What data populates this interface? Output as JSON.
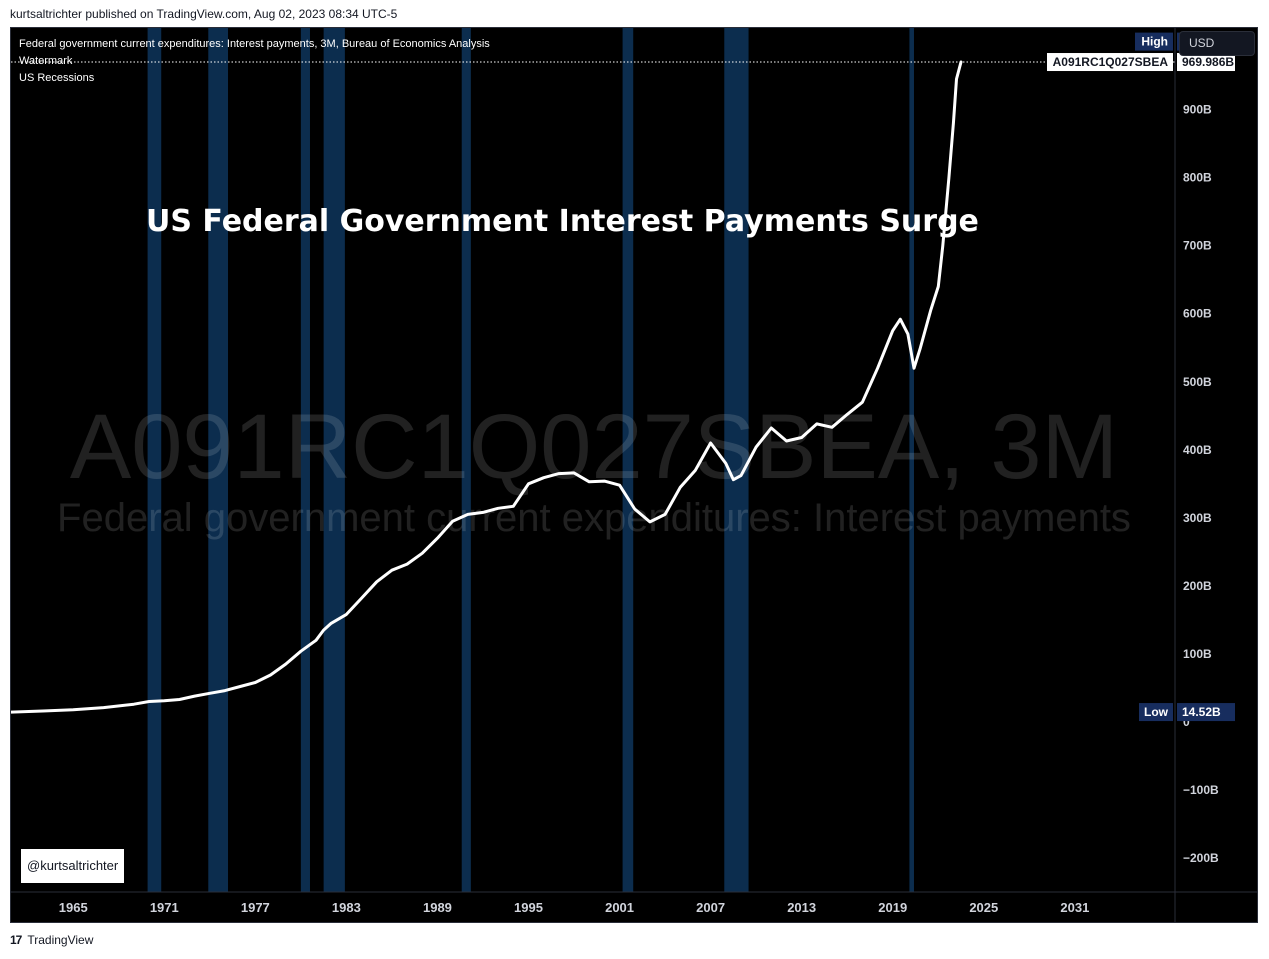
{
  "header": {
    "publish_line": "kurtsaltrichter published on TradingView.com, Aug 02, 2023 08:34 UTC-5"
  },
  "legend": {
    "series_title": "Federal government current expenditures: Interest payments, 3M, Bureau of Economics Analysis",
    "indicator_watermark": "Watermark",
    "indicator_recessions": "US Recessions"
  },
  "toolbar": {
    "currency_label": "USD"
  },
  "watermark": {
    "large": "A091RC1Q027SBEA, 3M",
    "sub": "Federal government current expenditures: Interest payments"
  },
  "credit": "@kurtsaltrichter",
  "footer": {
    "brand": "TradingView",
    "logo_text": "17"
  },
  "colors": {
    "background": "#000000",
    "line": "#ffffff",
    "recession": "#0c2d4e",
    "label_bg": "#172d5e"
  },
  "chart_data": {
    "type": "line",
    "title": "US Federal Government Interest Payments Surge",
    "symbol": "A091RC1Q027SBEA",
    "high_label": "High",
    "high_value": "969.986B",
    "last_value": "969.986B",
    "low_label": "Low",
    "low_value": "14.52B",
    "y_unit": "B",
    "ylim": [
      -250,
      1020
    ],
    "xlim": [
      1960.9,
      2037.6
    ],
    "y_ticks": [
      {
        "value": 900,
        "label": "900B"
      },
      {
        "value": 800,
        "label": "800B"
      },
      {
        "value": 700,
        "label": "700B"
      },
      {
        "value": 600,
        "label": "600B"
      },
      {
        "value": 500,
        "label": "500B"
      },
      {
        "value": 400,
        "label": "400B"
      },
      {
        "value": 300,
        "label": "300B"
      },
      {
        "value": 200,
        "label": "200B"
      },
      {
        "value": 100,
        "label": "100B"
      },
      {
        "value": 0,
        "label": "0"
      },
      {
        "value": -100,
        "label": "−100B"
      },
      {
        "value": -200,
        "label": "−200B"
      }
    ],
    "x_ticks": [
      {
        "value": 1965,
        "label": "1965"
      },
      {
        "value": 1971,
        "label": "1971"
      },
      {
        "value": 1977,
        "label": "1977"
      },
      {
        "value": 1983,
        "label": "1983"
      },
      {
        "value": 1989,
        "label": "1989"
      },
      {
        "value": 1995,
        "label": "1995"
      },
      {
        "value": 2001,
        "label": "2001"
      },
      {
        "value": 2007,
        "label": "2007"
      },
      {
        "value": 2013,
        "label": "2013"
      },
      {
        "value": 2019,
        "label": "2019"
      },
      {
        "value": 2025,
        "label": "2025"
      },
      {
        "value": 2031,
        "label": "2031"
      }
    ],
    "recessions": [
      [
        1969.9,
        1970.8
      ],
      [
        1973.9,
        1975.2
      ],
      [
        1980.0,
        1980.6
      ],
      [
        1981.5,
        1982.9
      ],
      [
        1990.6,
        1991.2
      ],
      [
        2001.2,
        2001.9
      ],
      [
        2007.9,
        2009.5
      ],
      [
        2020.1,
        2020.4
      ]
    ],
    "series": [
      {
        "x": [
          1960.9,
          1963,
          1965,
          1967,
          1969,
          1970,
          1971,
          1972,
          1973,
          1974,
          1975,
          1976,
          1977,
          1978,
          1979,
          1980,
          1981,
          1981.5,
          1982,
          1983,
          1984,
          1985,
          1986,
          1987,
          1988,
          1989,
          1990,
          1991,
          1992,
          1993,
          1994,
          1995,
          1996,
          1997,
          1998,
          1999,
          2000,
          2001,
          2002,
          2003,
          2004,
          2005,
          2006,
          2007,
          2008,
          2008.5,
          2009,
          2010,
          2011,
          2012,
          2013,
          2014,
          2015,
          2016,
          2017,
          2018,
          2019,
          2019.5,
          2020,
          2020.4,
          2020.8,
          2021.5,
          2022,
          2022.3,
          2022.7,
          2023,
          2023.2,
          2023.5
        ],
        "y": [
          14.5,
          16,
          18,
          21,
          26,
          30,
          31,
          33,
          38,
          42,
          46,
          52,
          58,
          69,
          85,
          104,
          120,
          135,
          145,
          158,
          182,
          206,
          223,
          232,
          248,
          270,
          295,
          305,
          308,
          314,
          317,
          350,
          359,
          365,
          366,
          353,
          354,
          348,
          313,
          294,
          305,
          345,
          370,
          410,
          380,
          356,
          362,
          404,
          432,
          413,
          418,
          438,
          433,
          452,
          470,
          520,
          575,
          592,
          570,
          520,
          548,
          605,
          640,
          700,
          800,
          880,
          945,
          969.986
        ]
      }
    ]
  }
}
